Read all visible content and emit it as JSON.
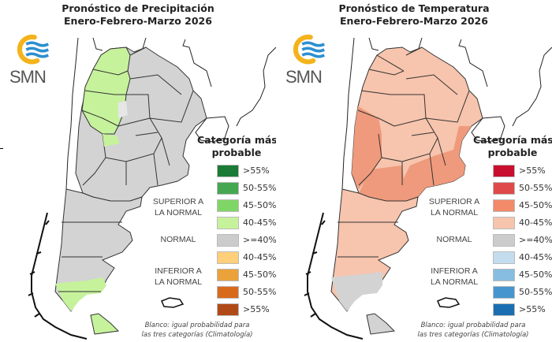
{
  "organization": "SMN",
  "panels": [
    {
      "id": "precipitation",
      "title_line1": "Pronóstico de Precipitación",
      "title_line2": "Enero-Febrero-Marzo 2026",
      "legend_title_line1": "Categoría más",
      "legend_title_line2": "probable",
      "groups": {
        "superior_line1": "SUPERIOR A",
        "superior_line2": "LA NORMAL",
        "normal": "NORMAL",
        "inferior_line1": "INFERIOR A",
        "inferior_line2": "LA NORMAL"
      },
      "legend": [
        {
          "label": ">55%",
          "color": "#1a7a36",
          "category": "superior"
        },
        {
          "label": "50-55%",
          "color": "#45a851",
          "category": "superior"
        },
        {
          "label": "45-50%",
          "color": "#7fd666",
          "category": "superior"
        },
        {
          "label": "40-45%",
          "color": "#c6f29c",
          "category": "superior"
        },
        {
          "label": ">=40%",
          "color": "#cccccc",
          "category": "normal"
        },
        {
          "label": "40-45%",
          "color": "#ffcf7a",
          "category": "inferior"
        },
        {
          "label": "45-50%",
          "color": "#eba23a",
          "category": "inferior"
        },
        {
          "label": "50-55%",
          "color": "#d86a1c",
          "category": "inferior"
        },
        {
          "label": ">55%",
          "color": "#b04a16",
          "category": "inferior"
        }
      ],
      "note_line1": "Blanco: igual probabilidad para",
      "note_line2": "las tres categorías (Climatología)",
      "map_colors": {
        "base": "#d3d3d3",
        "highlight": "#c6f29c",
        "highlight_alt": "#e6e6e6"
      }
    },
    {
      "id": "temperature",
      "title_line1": "Pronóstico de Temperatura",
      "title_line2": "Enero-Febrero-Marzo 2026",
      "legend_title_line1": "Categoría más",
      "legend_title_line2": "probable",
      "groups": {
        "superior_line1": "SUPERIOR A",
        "superior_line2": "LA NORMAL",
        "normal": "NORMAL",
        "inferior_line1": "INFERIOR A",
        "inferior_line2": "LA NORMAL"
      },
      "legend": [
        {
          "label": ">55%",
          "color": "#c8102e",
          "category": "superior"
        },
        {
          "label": "50-55%",
          "color": "#e0494a",
          "category": "superior"
        },
        {
          "label": "45-50%",
          "color": "#f28a6a",
          "category": "superior"
        },
        {
          "label": "40-45%",
          "color": "#f7c4ad",
          "category": "superior"
        },
        {
          "label": ">=40%",
          "color": "#cccccc",
          "category": "normal"
        },
        {
          "label": "40-45%",
          "color": "#c3ddef",
          "category": "inferior"
        },
        {
          "label": "45-50%",
          "color": "#86bde0",
          "category": "inferior"
        },
        {
          "label": "50-55%",
          "color": "#4695cf",
          "category": "inferior"
        },
        {
          "label": ">55%",
          "color": "#1b6fb0",
          "category": "inferior"
        }
      ],
      "note_line1": "Blanco: igual probabilidad para",
      "note_line2": "las tres categorías (Climatología)",
      "map_colors": {
        "base": "#f7c4ad",
        "highlight": "#ef9a7c",
        "highlight_alt": "#d3d3d3"
      }
    }
  ]
}
